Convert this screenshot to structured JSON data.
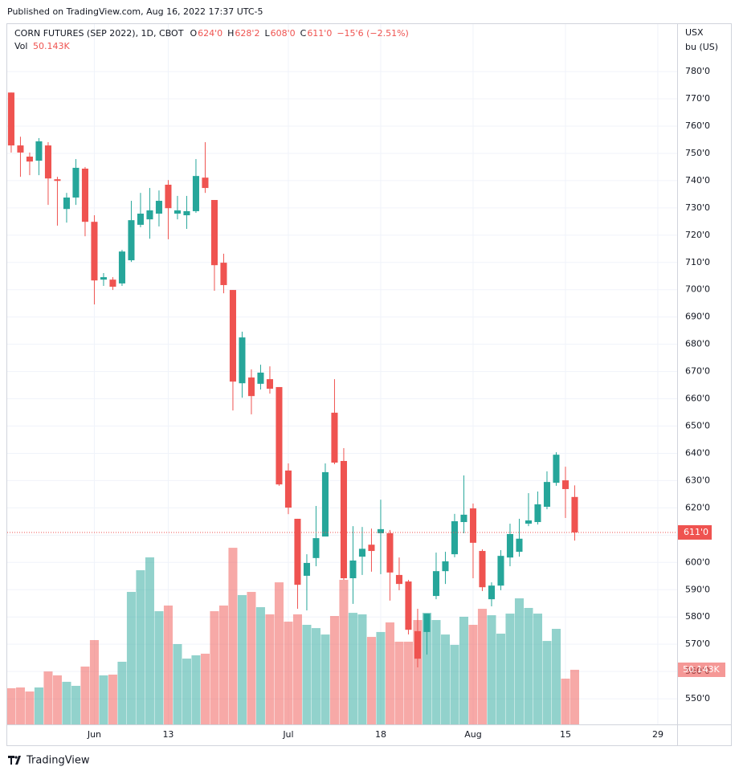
{
  "header": {
    "published": "Published on TradingView.com, Aug 16, 2022 17:37 UTC-5",
    "brand": "TradingView"
  },
  "chart_data": {
    "type": "candlestick",
    "title": "CORN FUTURES (SEP 2022), 1D, CBOT",
    "ohlc_legend": [
      {
        "key": "O",
        "value": "624'0"
      },
      {
        "key": "H",
        "value": "628'2"
      },
      {
        "key": "L",
        "value": "608'0"
      },
      {
        "key": "C",
        "value": "611'0"
      }
    ],
    "change": "−15'6 (−2.51%)",
    "volume_title": "Vol",
    "volume_label": "50.143K",
    "last_label": "611'0",
    "axis_unit": [
      "USX",
      "bu (US)"
    ],
    "up_color": "#26a69a",
    "down_color": "#ef5350",
    "x": [
      0,
      1,
      2,
      3,
      4,
      5,
      6,
      7,
      8,
      9,
      10,
      11,
      12,
      13,
      14,
      15,
      16,
      17,
      18,
      19,
      20,
      21,
      22,
      23,
      24,
      25,
      26,
      27,
      28,
      29,
      30,
      31,
      32,
      33,
      34,
      35,
      36,
      37,
      38,
      39,
      40,
      41,
      42,
      43,
      44,
      45,
      46,
      47,
      48,
      49,
      50,
      51,
      52,
      53,
      54,
      55,
      56,
      57,
      58,
      59,
      60,
      61
    ],
    "open": [
      772.3,
      752.9,
      748.8,
      747.3,
      752.9,
      740.5,
      729.6,
      733.8,
      744.4,
      724.9,
      703.7,
      703.7,
      702.3,
      710.8,
      723.8,
      725.8,
      727.9,
      738.5,
      727.9,
      727.3,
      728.8,
      741.1,
      732.9,
      709.9,
      699.9,
      665.7,
      667.8,
      665.5,
      667.2,
      664.3,
      633.7,
      616.0,
      595.1,
      601.6,
      609.5,
      654.9,
      637.2,
      594.2,
      602.1,
      606.5,
      610.7,
      610.7,
      595.4,
      593.0,
      574.8,
      574.5,
      587.7,
      596.8,
      603.0,
      614.8,
      619.8,
      604.2,
      586.5,
      591.5,
      601.8,
      603.9,
      614.2,
      614.8,
      620.4,
      629.2,
      630.1,
      624
    ],
    "high": [
      772.3,
      756.1,
      750.3,
      755.6,
      754.1,
      741.4,
      735.5,
      747.9,
      745.0,
      727.3,
      706.1,
      704.6,
      714.6,
      732.6,
      735.5,
      737.3,
      736.4,
      740.2,
      734.4,
      734.4,
      747.9,
      754.1,
      732.9,
      713.2,
      699.9,
      684.6,
      670.8,
      672.5,
      671.9,
      664.3,
      636.3,
      616.0,
      603.0,
      620.7,
      636.3,
      667.2,
      641.9,
      613.3,
      613.0,
      612.4,
      623.0,
      611.9,
      601.8,
      593.6,
      583.0,
      581.2,
      603.6,
      603.9,
      617.8,
      631.9,
      621.6,
      604.8,
      592.7,
      604.5,
      614.2,
      616.0,
      625.4,
      626.0,
      633.4,
      640.4,
      635.1,
      628.25
    ],
    "low": [
      750.3,
      741.4,
      742.0,
      742.0,
      731.1,
      723.5,
      724.6,
      731.1,
      719.6,
      694.6,
      701.4,
      699.9,
      701.4,
      710.2,
      722.9,
      718.7,
      723.2,
      718.5,
      725.8,
      722.3,
      728.2,
      735.5,
      699.6,
      698.7,
      655.7,
      660.4,
      654.3,
      663.4,
      661.9,
      628.1,
      617.7,
      583.0,
      582.4,
      598.6,
      609.5,
      636.0,
      593.6,
      584.8,
      595.4,
      596.6,
      595.7,
      586.0,
      589.8,
      573.6,
      561.5,
      566.2,
      586.5,
      592.1,
      601.9,
      610.7,
      594.2,
      589.5,
      583.9,
      589.8,
      598.6,
      602.1,
      613.3,
      613.9,
      619.5,
      628.1,
      616.3,
      608
    ],
    "close": [
      752.9,
      750.3,
      747.0,
      754.4,
      740.8,
      739.9,
      733.8,
      744.7,
      724.9,
      703.4,
      704.6,
      701.1,
      714.0,
      725.5,
      727.9,
      729.1,
      732.6,
      729.9,
      729.1,
      728.8,
      741.7,
      737.3,
      709.0,
      701.7,
      666.3,
      682.5,
      661.0,
      669.6,
      663.7,
      628.6,
      620.1,
      591.8,
      599.8,
      608.9,
      633.1,
      636.6,
      594.2,
      600.7,
      605.0,
      604.2,
      612.2,
      596.3,
      592.1,
      575.3,
      564.7,
      581.2,
      596.8,
      600.4,
      615.1,
      617.5,
      607.2,
      590.9,
      591.5,
      602.4,
      610.4,
      608.7,
      615.4,
      621.3,
      629.5,
      639.5,
      626.9,
      611
    ],
    "volume": [
      33200,
      33900,
      30200,
      33900,
      48600,
      45000,
      39100,
      35400,
      53100,
      77400,
      45000,
      45700,
      57500,
      121600,
      141500,
      153300,
      103900,
      109100,
      73700,
      60400,
      63400,
      64900,
      103900,
      109100,
      162100,
      118700,
      121600,
      107600,
      101000,
      130400,
      94300,
      101000,
      91400,
      88400,
      82500,
      99500,
      132700,
      102400,
      101000,
      80300,
      84800,
      93600,
      75900,
      75900,
      95800,
      102400,
      95800,
      82500,
      73000,
      98800,
      91400,
      106100,
      100200,
      83300,
      101700,
      115700,
      106900,
      101700,
      76600,
      87700,
      42000,
      50143
    ],
    "vlim": [
      0,
      300000
    ],
    "xlim": [
      -0.43,
      72.09
    ],
    "xticks": [
      {
        "value": 9,
        "label": "Jun"
      },
      {
        "value": 17,
        "label": "13"
      },
      {
        "value": 30,
        "label": "Jul"
      },
      {
        "value": 40,
        "label": "18"
      },
      {
        "value": 50,
        "label": "Aug"
      },
      {
        "value": 60,
        "label": "15"
      },
      {
        "value": 70,
        "label": "29"
      }
    ],
    "ylim": [
      540.6,
      797.4
    ],
    "yticks": [
      {
        "value": 550,
        "label": "550'0"
      },
      {
        "value": 560,
        "label": "560'0"
      },
      {
        "value": 570,
        "label": "570'0"
      },
      {
        "value": 580,
        "label": "580'0"
      },
      {
        "value": 590,
        "label": "590'0"
      },
      {
        "value": 600,
        "label": "600'0"
      },
      {
        "value": 610,
        "label": "610'0"
      },
      {
        "value": 620,
        "label": "620'0"
      },
      {
        "value": 630,
        "label": "630'0"
      },
      {
        "value": 640,
        "label": "640'0"
      },
      {
        "value": 650,
        "label": "650'0"
      },
      {
        "value": 660,
        "label": "660'0"
      },
      {
        "value": 670,
        "label": "670'0"
      },
      {
        "value": 680,
        "label": "680'0"
      },
      {
        "value": 690,
        "label": "690'0"
      },
      {
        "value": 700,
        "label": "700'0"
      },
      {
        "value": 710,
        "label": "710'0"
      },
      {
        "value": 720,
        "label": "720'0"
      },
      {
        "value": 730,
        "label": "730'0"
      },
      {
        "value": 740,
        "label": "740'0"
      },
      {
        "value": 750,
        "label": "750'0"
      },
      {
        "value": 760,
        "label": "760'0"
      },
      {
        "value": 770,
        "label": "770'0"
      },
      {
        "value": 780,
        "label": "780'0"
      }
    ],
    "grid": true
  }
}
